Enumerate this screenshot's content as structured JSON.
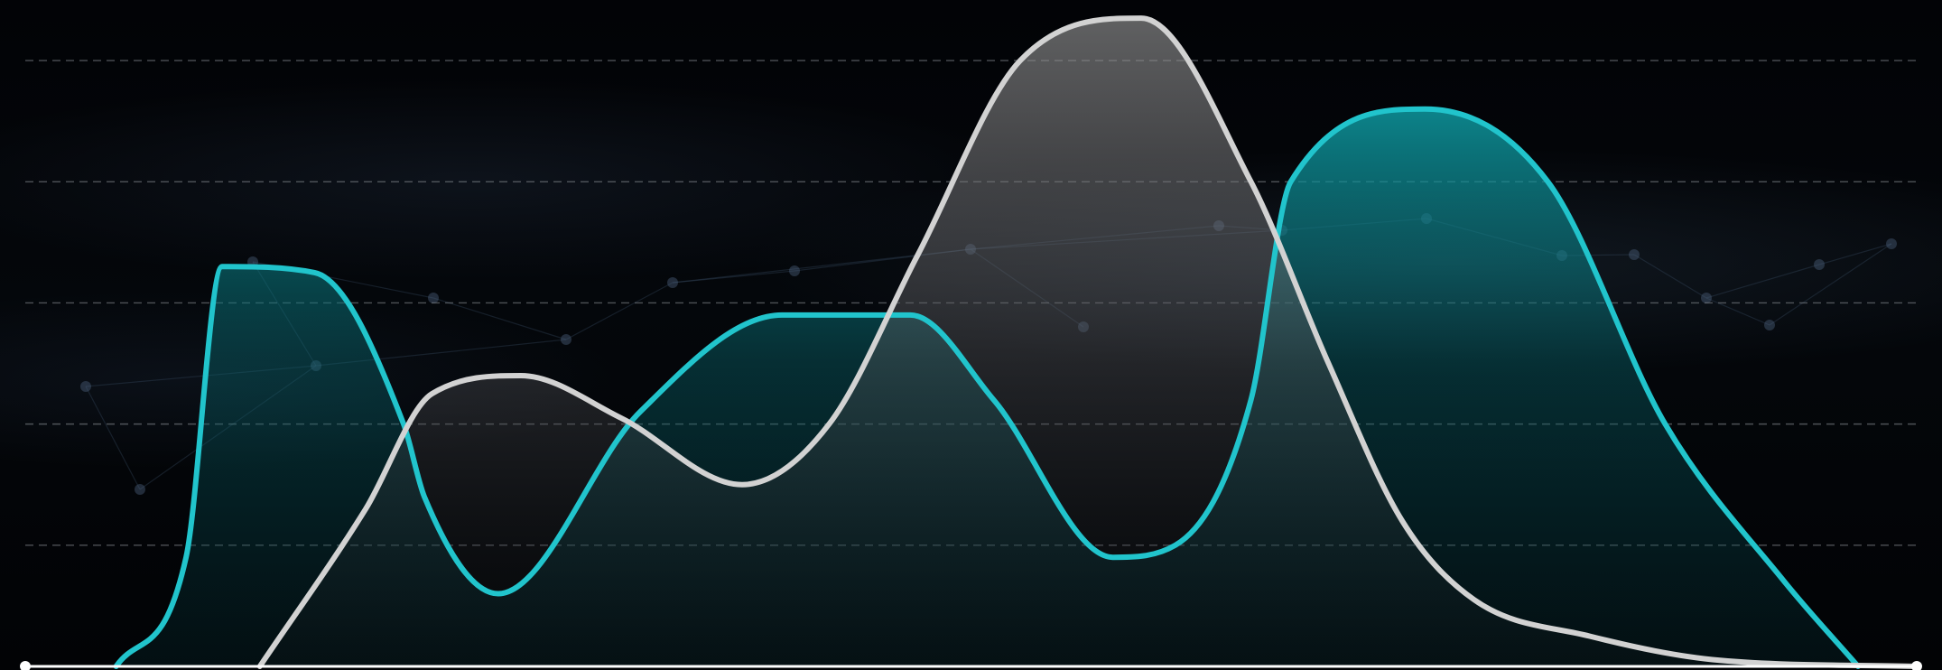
{
  "chart_data": {
    "type": "area",
    "title": "",
    "xlabel": "",
    "ylabel": "",
    "grid": true,
    "legend": "none",
    "xlim": [
      0,
      100
    ],
    "ylim": [
      0,
      5.5
    ],
    "gridlines": [
      1,
      2,
      3,
      4,
      5
    ],
    "series": [
      {
        "color": "#21c4cc",
        "x": [
          4.8,
          8.5,
          10.4,
          15.3,
          20.0,
          21.1,
          25.0,
          32.5,
          40.0,
          46.8,
          51.2,
          57.5,
          60.8,
          64.8,
          66.9,
          74.0,
          80.5,
          86.7,
          93.0,
          96.9
        ],
        "y": [
          0,
          0.9,
          3.3,
          3.25,
          2.0,
          1.4,
          0.6,
          2.1,
          2.9,
          2.9,
          2.2,
          0.9,
          1.0,
          2.2,
          4.0,
          4.6,
          4.0,
          2.0,
          0.7,
          0
        ]
      },
      {
        "color": "#d2d2d2",
        "x": [
          12.4,
          18.0,
          21.5,
          26.2,
          31.5,
          37.9,
          42.5,
          47.2,
          52.6,
          59.0,
          64.8,
          68.9,
          72.8,
          76.6,
          82.7,
          89.6,
          100
        ],
        "y": [
          0,
          1.3,
          2.25,
          2.4,
          2.05,
          1.5,
          2.0,
          3.4,
          5.0,
          5.35,
          4.0,
          2.5,
          1.2,
          0.55,
          0.25,
          0.05,
          0
        ]
      }
    ]
  }
}
